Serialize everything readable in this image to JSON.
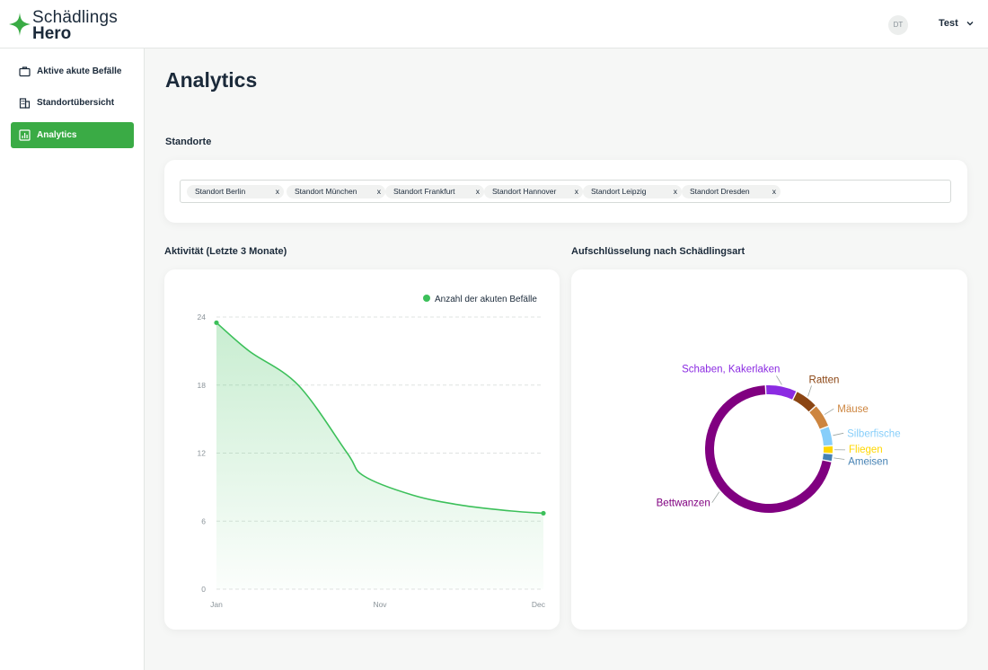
{
  "brand": {
    "line1": "Schädlings",
    "line2": "Hero",
    "accent": "#3aab45"
  },
  "header": {
    "avatar_initials": "DT",
    "user_name": "Test"
  },
  "sidebar": {
    "items": [
      {
        "label": "Aktive akute Befälle",
        "icon": "briefcase-icon"
      },
      {
        "label": "Standortübersicht",
        "icon": "building-icon"
      },
      {
        "label": "Analytics",
        "icon": "chart-icon",
        "active": true
      }
    ]
  },
  "page": {
    "title": "Analytics"
  },
  "locations": {
    "label": "Standorte",
    "tags": [
      {
        "label": "Standort Berlin",
        "remove": "x"
      },
      {
        "label": "Standort München",
        "remove": "x"
      },
      {
        "label": "Standort Frankfurt",
        "remove": "x"
      },
      {
        "label": "Standort Hannover",
        "remove": "x"
      },
      {
        "label": "Standort Leipzig",
        "remove": "x"
      },
      {
        "label": "Standort Dresden",
        "remove": "x"
      }
    ]
  },
  "activity": {
    "title": "Aktivität (Letzte 3 Monate)"
  },
  "breakdown": {
    "title": "Aufschlüsselung nach Schädlingsart"
  },
  "chart_data": [
    {
      "type": "area",
      "title": "Aktivität (Letzte 3 Monate)",
      "legend": "Anzahl der akuten Befälle",
      "legend_position": "top-right",
      "color": "#3cc05a",
      "x_tick_labels": [
        "Jan",
        "Nov",
        "Dec"
      ],
      "x": [
        0,
        0.1,
        0.25,
        0.4,
        0.45,
        0.6,
        0.75,
        0.9,
        1.0
      ],
      "y": [
        23.5,
        21,
        18,
        12,
        10,
        8.3,
        7.4,
        6.9,
        6.7
      ],
      "yticks": [
        0,
        6,
        12,
        18,
        24
      ],
      "ylim": [
        0,
        24
      ],
      "grid": "horizontal-dashed"
    },
    {
      "type": "pie",
      "style": "donut",
      "title": "Aufschlüsselung nach Schädlingsart",
      "categories": [
        "Schaben, Kakerlaken",
        "Ratten",
        "Mäuse",
        "Silberfische",
        "Fliegen",
        "Ameisen",
        "Bettwanzen"
      ],
      "values": [
        8,
        6,
        6,
        5,
        2,
        2,
        71
      ],
      "colors": [
        "#8b2be2",
        "#8b4513",
        "#cd853f",
        "#87cefa",
        "#ffd700",
        "#4682b4",
        "#800080"
      ]
    }
  ]
}
